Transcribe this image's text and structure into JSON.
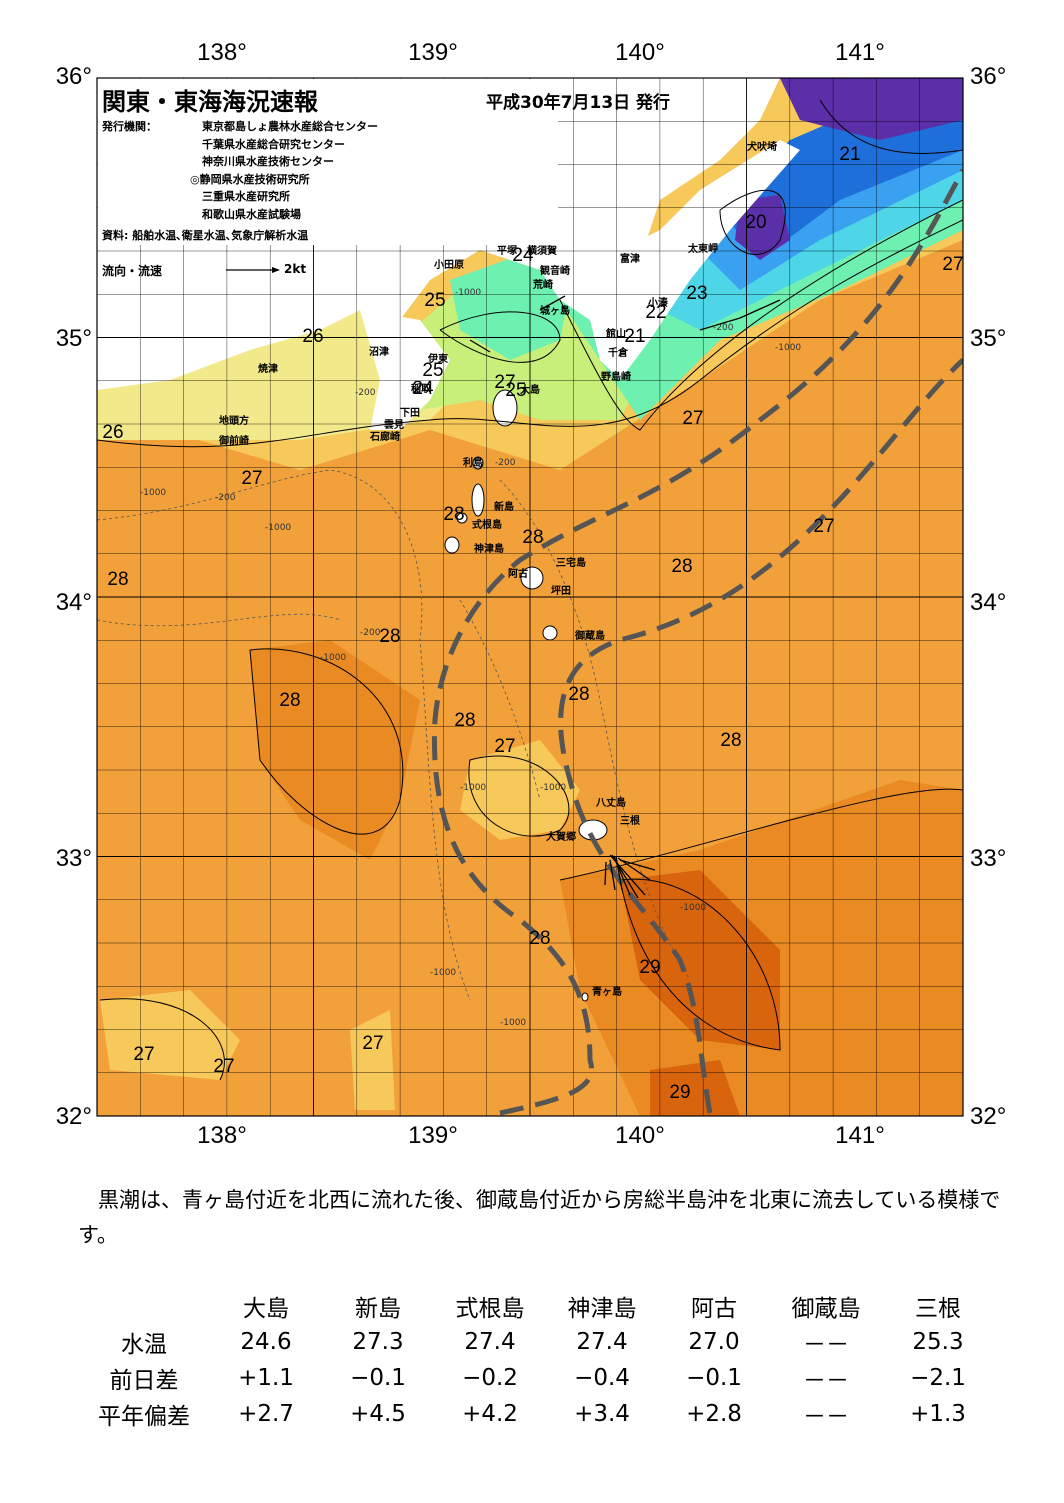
{
  "header": {
    "title": "関東・東海海況速報",
    "date": "平成30年7月13日 発行",
    "issuer_label": "発行機関：",
    "issuers": [
      "東京都島しょ農林水産総合センター",
      "千葉県水産総合研究センター",
      "神奈川県水産技術センター",
      "◎静岡県水産技術研究所",
      "三重県水産研究所",
      "和歌山県水産試験場"
    ],
    "sources": "資料: 船舶水温､衛星水温､気象庁解析水温",
    "legend_label": "流向・流速",
    "legend_scale": "2kt"
  },
  "map": {
    "lon_labels": [
      "138°",
      "139°",
      "140°",
      "141°"
    ],
    "lat_labels": [
      "36°",
      "35°",
      "34°",
      "33°",
      "32°"
    ],
    "colors": {
      "c20": "#5a2fa8",
      "c21": "#1e6fd9",
      "c22": "#3aa0f0",
      "c23": "#4ed6e8",
      "c24": "#6ef0b0",
      "c25": "#c8ef7a",
      "c26": "#f2e98a",
      "c27": "#f7c85a",
      "c28": "#f2a13a",
      "c285": "#ea8a22",
      "c29": "#d8640e",
      "c295": "#c84e08",
      "land": "#ffffff",
      "stream": "#555555"
    },
    "isotherm_labels": [
      {
        "text": "21"
      },
      {
        "text": "20"
      },
      {
        "text": "22"
      },
      {
        "text": "23"
      },
      {
        "text": "21"
      },
      {
        "text": "24"
      },
      {
        "text": "25"
      },
      {
        "text": "26"
      },
      {
        "text": "25"
      },
      {
        "text": "24"
      },
      {
        "text": "26"
      },
      {
        "text": "27"
      },
      {
        "text": "25"
      },
      {
        "text": "27"
      },
      {
        "text": "27"
      },
      {
        "text": "27"
      },
      {
        "text": "28"
      },
      {
        "text": "28"
      },
      {
        "text": "28"
      },
      {
        "text": "28"
      },
      {
        "text": "28"
      },
      {
        "text": "28"
      },
      {
        "text": "28"
      },
      {
        "text": "28"
      },
      {
        "text": "27"
      },
      {
        "text": "28"
      },
      {
        "text": "28"
      },
      {
        "text": "29"
      },
      {
        "text": "29"
      },
      {
        "text": "27"
      },
      {
        "text": "27"
      },
      {
        "text": "27"
      },
      {
        "text": "27"
      }
    ],
    "place_names": [
      "犬吠埼",
      "太東岬",
      "富津",
      "小湊",
      "館山",
      "千倉",
      "野島崎",
      "平塚",
      "横須賀",
      "観音崎",
      "荒崎",
      "小田原",
      "城ヶ島",
      "沼津",
      "伊東",
      "焼津",
      "稲取",
      "下田",
      "地頭方",
      "御前崎",
      "雲見",
      "石廊崎",
      "大島",
      "利島",
      "新島",
      "式根島",
      "神津島",
      "三宅島",
      "阿古",
      "坪田",
      "御蔵島",
      "八丈島",
      "三根",
      "大賀郷",
      "青ヶ島"
    ],
    "depth_label": "-1000",
    "depth_label_200": "-200"
  },
  "summary": "黒潮は、青ヶ島付近を北西に流れた後、御蔵島付近から房総半島沖を北東に流去している模様です。",
  "stats": {
    "columns": [
      "大島",
      "新島",
      "式根島",
      "神津島",
      "阿古",
      "御蔵島",
      "三根"
    ],
    "rows": [
      {
        "label": "水温",
        "values": [
          "24.6",
          "27.3",
          "27.4",
          "27.4",
          "27.0",
          "－－",
          "25.3"
        ]
      },
      {
        "label": "前日差",
        "values": [
          "+1.1",
          "−0.1",
          "−0.2",
          "−0.4",
          "−0.1",
          "－－",
          "−2.1"
        ]
      },
      {
        "label": "平年偏差",
        "values": [
          "+2.7",
          "+4.5",
          "+4.2",
          "+3.4",
          "+2.8",
          "－－",
          "+1.3"
        ]
      }
    ]
  }
}
